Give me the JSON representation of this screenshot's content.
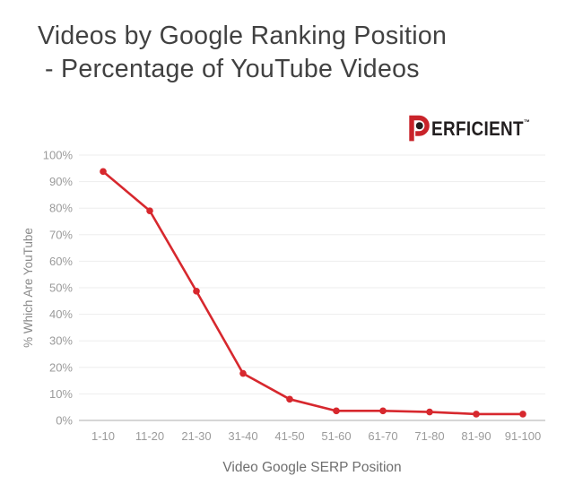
{
  "title": {
    "line1": "Videos by Google Ranking Position",
    "line2": "- Percentage of YouTube Videos"
  },
  "logo": {
    "text": "ERFICIENT",
    "tm": "™"
  },
  "colors": {
    "line": "#d7282e",
    "logo_red": "#c9232a",
    "logo_black": "#231f20",
    "title_text": "#414141",
    "tick_text": "#9b9b9b",
    "x_axis_title": "#6f6f6f",
    "y_axis_title": "#8a8a8a",
    "grid": "#ededed",
    "axis_line": "#c9c9c9"
  },
  "chart_data": {
    "type": "line",
    "categories": [
      "1-10",
      "11-20",
      "21-30",
      "31-40",
      "41-50",
      "51-60",
      "61-70",
      "71-80",
      "81-90",
      "91-100"
    ],
    "values": [
      93.8,
      79,
      48.7,
      17.7,
      8,
      3.6,
      3.6,
      3.2,
      2.4,
      2.4
    ],
    "title": "Videos by Google Ranking Position - Percentage of YouTube Videos",
    "xlabel": "Video Google SERP Position",
    "ylabel": "% Which Are YouTube",
    "ylim": [
      0,
      100
    ],
    "ytick_step": 10,
    "ytick_suffix": "%",
    "grid": "horizontal",
    "legend": "none",
    "marker": "circle"
  }
}
